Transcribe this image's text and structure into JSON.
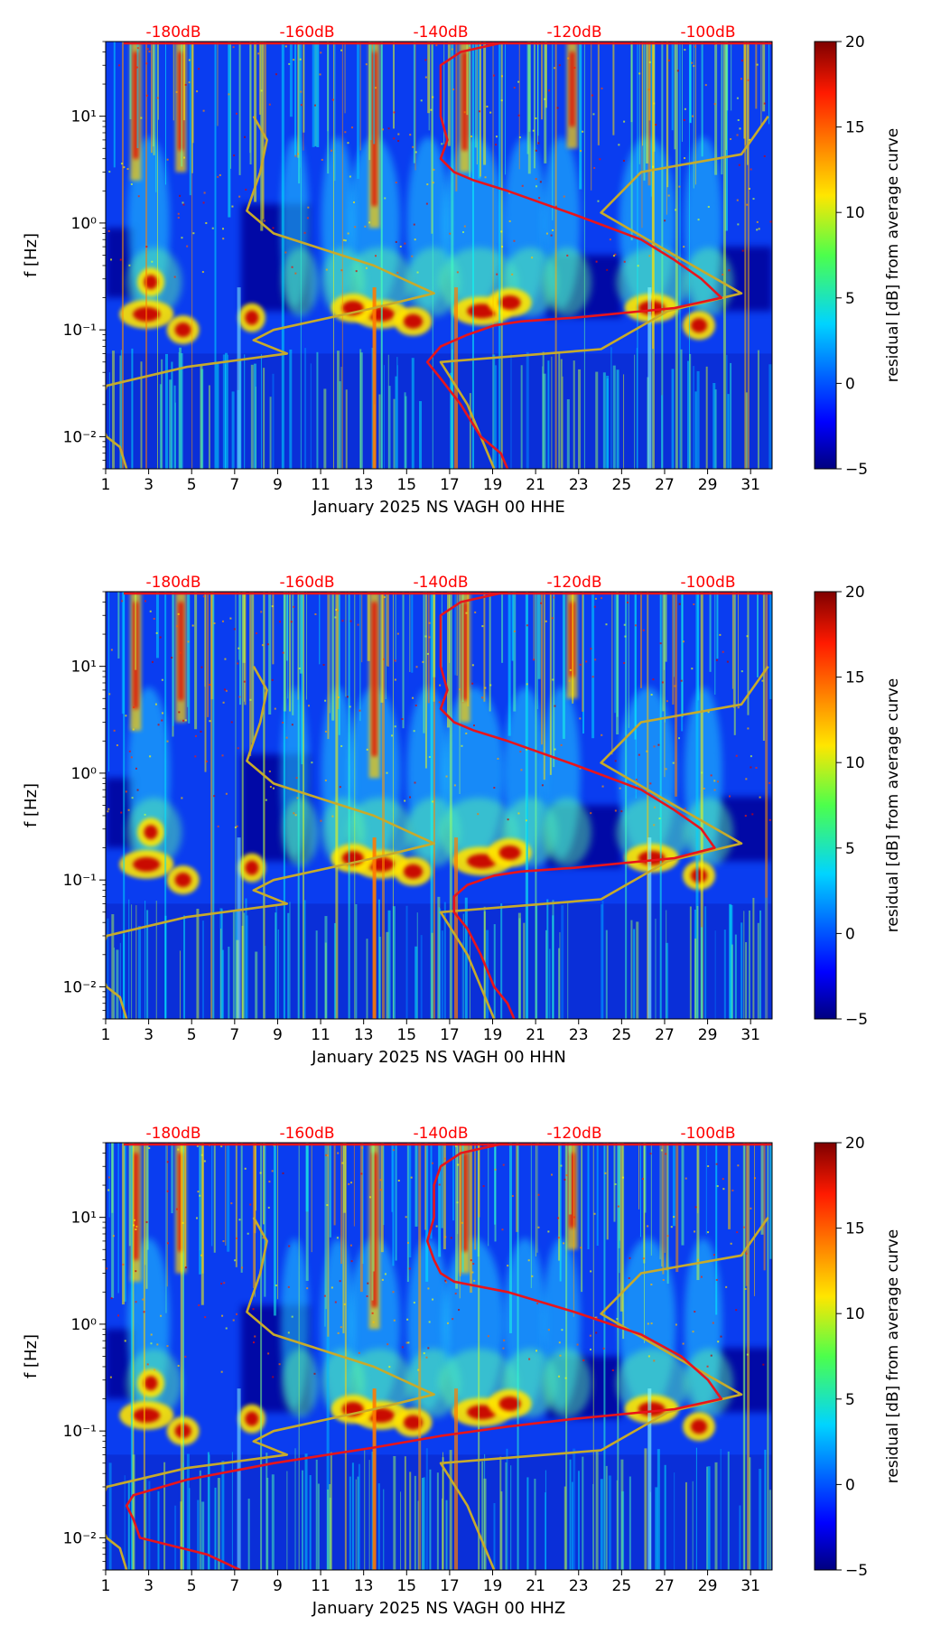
{
  "chart_data": [
    {
      "type": "heatmap",
      "xlabel": "January 2025 NS VAGH 00 HHE",
      "ylabel": "f [Hz]",
      "xlim": [
        1,
        32
      ],
      "ylim": [
        0.005,
        50
      ],
      "yscale": "log",
      "x_ticks": [
        1,
        3,
        5,
        7,
        9,
        11,
        13,
        15,
        17,
        19,
        21,
        23,
        25,
        27,
        29,
        31
      ],
      "y_ticks": [
        {
          "value": 0.01,
          "label": "10⁻²"
        },
        {
          "value": 0.1,
          "label": "10⁻¹"
        },
        {
          "value": 1,
          "label": "10⁰"
        },
        {
          "value": 10,
          "label": "10¹"
        }
      ],
      "top_axis_labels": [
        "-180dB",
        "-160dB",
        "-140dB",
        "-120dB",
        "-100dB"
      ],
      "colorbar": {
        "label": "residual [dB] from average curve",
        "range": [
          -5,
          20
        ],
        "ticks": [
          -5,
          0,
          5,
          10,
          15,
          20
        ]
      },
      "average_curve": {
        "color": "#e8141b",
        "unit": "dB",
        "points": [
          [
            -130,
            50
          ],
          [
            -137,
            40
          ],
          [
            -140,
            30
          ],
          [
            -140,
            20
          ],
          [
            -140,
            10
          ],
          [
            -139,
            6
          ],
          [
            -140,
            4
          ],
          [
            -138,
            3
          ],
          [
            -135,
            2.5
          ],
          [
            -130,
            2
          ],
          [
            -120,
            1.2
          ],
          [
            -110,
            0.7
          ],
          [
            -105,
            0.45
          ],
          [
            -101,
            0.3
          ],
          [
            -98,
            0.2
          ],
          [
            -105,
            0.16
          ],
          [
            -120,
            0.13
          ],
          [
            -128,
            0.12
          ],
          [
            -132,
            0.11
          ],
          [
            -136,
            0.09
          ],
          [
            -140,
            0.07
          ],
          [
            -142,
            0.05
          ],
          [
            -140,
            0.035
          ],
          [
            -137,
            0.02
          ],
          [
            -134,
            0.01
          ],
          [
            -131,
            0.007
          ],
          [
            -130,
            0.005
          ]
        ]
      },
      "noise_model_curves": {
        "color": "#c7aa2b",
        "unit": "dB",
        "low": [
          [
            -168,
            10
          ],
          [
            -166,
            6
          ],
          [
            -167,
            3
          ],
          [
            -169,
            1.3
          ],
          [
            -165,
            0.8
          ],
          [
            -150,
            0.4
          ],
          [
            -141,
            0.22
          ],
          [
            -150,
            0.16
          ],
          [
            -165,
            0.1
          ],
          [
            -168,
            0.08
          ],
          [
            -163,
            0.06
          ],
          [
            -178,
            0.045
          ],
          [
            -190,
            0.03
          ],
          [
            -191,
            0.02
          ],
          [
            -191,
            0.014
          ],
          [
            -190,
            0.01
          ],
          [
            -188,
            0.008
          ],
          [
            -187,
            0.005
          ]
        ],
        "high": [
          [
            -91,
            10
          ],
          [
            -95,
            4.4
          ],
          [
            -110,
            3
          ],
          [
            -116,
            1.25
          ],
          [
            -105,
            0.5
          ],
          [
            -95,
            0.22
          ],
          [
            -106,
            0.15
          ],
          [
            -116,
            0.066
          ],
          [
            -140,
            0.05
          ],
          [
            -136,
            0.02
          ],
          [
            -132,
            0.005
          ]
        ]
      }
    },
    {
      "type": "heatmap",
      "xlabel": "January 2025 NS VAGH 00 HHN",
      "ylabel": "f [Hz]",
      "xlim": [
        1,
        32
      ],
      "ylim": [
        0.005,
        50
      ],
      "yscale": "log",
      "x_ticks": [
        1,
        3,
        5,
        7,
        9,
        11,
        13,
        15,
        17,
        19,
        21,
        23,
        25,
        27,
        29,
        31
      ],
      "y_ticks": [
        {
          "value": 0.01,
          "label": "10⁻²"
        },
        {
          "value": 0.1,
          "label": "10⁻¹"
        },
        {
          "value": 1,
          "label": "10⁰"
        },
        {
          "value": 10,
          "label": "10¹"
        }
      ],
      "top_axis_labels": [
        "-180dB",
        "-160dB",
        "-140dB",
        "-120dB",
        "-100dB"
      ],
      "colorbar": {
        "label": "residual [dB] from average curve",
        "range": [
          -5,
          20
        ],
        "ticks": [
          -5,
          0,
          5,
          10,
          15,
          20
        ]
      },
      "average_curve": {
        "color": "#e8141b",
        "unit": "dB",
        "points": [
          [
            -130,
            50
          ],
          [
            -137,
            40
          ],
          [
            -140,
            30
          ],
          [
            -140,
            20
          ],
          [
            -140,
            10
          ],
          [
            -139,
            6
          ],
          [
            -140,
            4
          ],
          [
            -138,
            3
          ],
          [
            -135,
            2.5
          ],
          [
            -130,
            2
          ],
          [
            -120,
            1.2
          ],
          [
            -110,
            0.7
          ],
          [
            -105,
            0.45
          ],
          [
            -101,
            0.3
          ],
          [
            -99,
            0.2
          ],
          [
            -105,
            0.16
          ],
          [
            -120,
            0.13
          ],
          [
            -128,
            0.12
          ],
          [
            -132,
            0.11
          ],
          [
            -136,
            0.09
          ],
          [
            -138,
            0.07
          ],
          [
            -138,
            0.05
          ],
          [
            -136,
            0.035
          ],
          [
            -134,
            0.02
          ],
          [
            -132,
            0.01
          ],
          [
            -130,
            0.007
          ],
          [
            -129,
            0.005
          ]
        ]
      },
      "noise_model_curves": {
        "color": "#c7aa2b",
        "unit": "dB",
        "low": [
          [
            -168,
            10
          ],
          [
            -166,
            6
          ],
          [
            -167,
            3
          ],
          [
            -169,
            1.3
          ],
          [
            -165,
            0.8
          ],
          [
            -150,
            0.4
          ],
          [
            -141,
            0.22
          ],
          [
            -150,
            0.16
          ],
          [
            -165,
            0.1
          ],
          [
            -168,
            0.08
          ],
          [
            -163,
            0.06
          ],
          [
            -178,
            0.045
          ],
          [
            -190,
            0.03
          ],
          [
            -191,
            0.02
          ],
          [
            -191,
            0.014
          ],
          [
            -190,
            0.01
          ],
          [
            -188,
            0.008
          ],
          [
            -187,
            0.005
          ]
        ],
        "high": [
          [
            -91,
            10
          ],
          [
            -95,
            4.4
          ],
          [
            -110,
            3
          ],
          [
            -116,
            1.25
          ],
          [
            -105,
            0.5
          ],
          [
            -95,
            0.22
          ],
          [
            -106,
            0.15
          ],
          [
            -116,
            0.066
          ],
          [
            -140,
            0.05
          ],
          [
            -136,
            0.02
          ],
          [
            -132,
            0.005
          ]
        ]
      }
    },
    {
      "type": "heatmap",
      "xlabel": "January 2025 NS VAGH 00 HHZ",
      "ylabel": "f [Hz]",
      "xlim": [
        1,
        32
      ],
      "ylim": [
        0.005,
        50
      ],
      "yscale": "log",
      "x_ticks": [
        1,
        3,
        5,
        7,
        9,
        11,
        13,
        15,
        17,
        19,
        21,
        23,
        25,
        27,
        29,
        31
      ],
      "y_ticks": [
        {
          "value": 0.01,
          "label": "10⁻²"
        },
        {
          "value": 0.1,
          "label": "10⁻¹"
        },
        {
          "value": 1,
          "label": "10⁰"
        },
        {
          "value": 10,
          "label": "10¹"
        }
      ],
      "top_axis_labels": [
        "-180dB",
        "-160dB",
        "-140dB",
        "-120dB",
        "-100dB"
      ],
      "colorbar": {
        "label": "residual [dB] from average curve",
        "range": [
          -5,
          20
        ],
        "ticks": [
          -5,
          0,
          5,
          10,
          15,
          20
        ]
      },
      "average_curve": {
        "color": "#e8141b",
        "unit": "dB",
        "points": [
          [
            -130,
            50
          ],
          [
            -137,
            40
          ],
          [
            -140,
            30
          ],
          [
            -141,
            20
          ],
          [
            -141,
            10
          ],
          [
            -142,
            6
          ],
          [
            -141,
            4
          ],
          [
            -140,
            3
          ],
          [
            -138,
            2.5
          ],
          [
            -130,
            2
          ],
          [
            -120,
            1.3
          ],
          [
            -110,
            0.8
          ],
          [
            -104,
            0.5
          ],
          [
            -100,
            0.3
          ],
          [
            -98,
            0.2
          ],
          [
            -105,
            0.16
          ],
          [
            -120,
            0.13
          ],
          [
            -130,
            0.11
          ],
          [
            -140,
            0.09
          ],
          [
            -150,
            0.07
          ],
          [
            -165,
            0.05
          ],
          [
            -178,
            0.035
          ],
          [
            -186,
            0.025
          ],
          [
            -187,
            0.02
          ],
          [
            -186,
            0.015
          ],
          [
            -185,
            0.01
          ],
          [
            -175,
            0.007
          ],
          [
            -170,
            0.005
          ]
        ]
      },
      "noise_model_curves": {
        "color": "#c7aa2b",
        "unit": "dB",
        "low": [
          [
            -168,
            10
          ],
          [
            -166,
            6
          ],
          [
            -167,
            3
          ],
          [
            -169,
            1.3
          ],
          [
            -165,
            0.8
          ],
          [
            -150,
            0.4
          ],
          [
            -141,
            0.22
          ],
          [
            -150,
            0.16
          ],
          [
            -165,
            0.1
          ],
          [
            -168,
            0.08
          ],
          [
            -163,
            0.06
          ],
          [
            -178,
            0.045
          ],
          [
            -190,
            0.03
          ],
          [
            -191,
            0.02
          ],
          [
            -191,
            0.014
          ],
          [
            -190,
            0.01
          ],
          [
            -188,
            0.008
          ],
          [
            -187,
            0.005
          ]
        ],
        "high": [
          [
            -91,
            10
          ],
          [
            -95,
            4.4
          ],
          [
            -110,
            3
          ],
          [
            -116,
            1.25
          ],
          [
            -105,
            0.5
          ],
          [
            -95,
            0.22
          ],
          [
            -106,
            0.15
          ],
          [
            -116,
            0.066
          ],
          [
            -140,
            0.05
          ],
          [
            -136,
            0.02
          ],
          [
            -132,
            0.005
          ]
        ]
      }
    }
  ]
}
